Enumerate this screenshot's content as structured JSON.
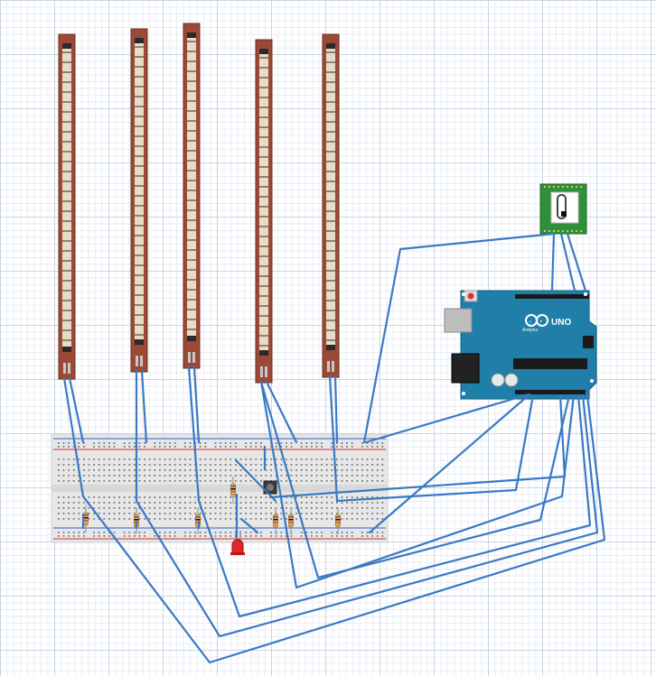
{
  "board": {
    "logo_text": "UNO",
    "brand_text": "Arduino"
  },
  "colors": {
    "wire": "#3a79c4",
    "flex_sensor_body": "#9b4a38",
    "flex_sensor_strip": "#e9dcc4",
    "arduino_board": "#1f7fa8",
    "breadboard": "#e7e7e7",
    "bluetooth_module": "#2f8f3a",
    "led": "#e0262b"
  },
  "components": {
    "flex_sensor_count": 5,
    "resistor_count": 7,
    "led_count": 1,
    "push_button_count": 1
  }
}
